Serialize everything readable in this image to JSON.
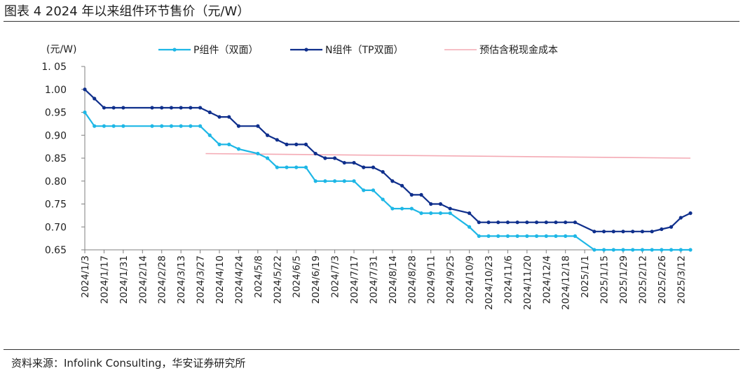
{
  "figure": {
    "title": "图表 4 2024 年以来组件环节售价（元/W）",
    "source": "资料来源：Infolink Consulting，华安证券研究所"
  },
  "chart_data": {
    "type": "line",
    "ylabel": "(元/W)",
    "ylim": [
      0.65,
      1.05
    ],
    "yticks": [
      "1. 05",
      "1.00",
      "0.95",
      "0.90",
      "0.85",
      "0.80",
      "0.75",
      "0.70",
      "0.65"
    ],
    "xlabels": [
      "2024/1/3",
      "2024/1/17",
      "2024/1/31",
      "2024/2/14",
      "2024/2/28",
      "2024/3/13",
      "2024/3/27",
      "2024/4/10",
      "2024/4/24",
      "2024/5/8",
      "2024/5/22",
      "2024/6/5",
      "2024/6/19",
      "2024/7/3",
      "2024/7/17",
      "2024/7/31",
      "2024/8/14",
      "2024/8/28",
      "2024/9/11",
      "2024/9/25",
      "2024/10/9",
      "2024/10/23",
      "2024/11/6",
      "2024/11/20",
      "2024/12/4",
      "2024/12/18",
      "2025/1/1",
      "2025/1/15",
      "2025/1/29",
      "2025/2/12",
      "2025/2/26",
      "2025/3/12"
    ],
    "grid": false,
    "legend_position": "top",
    "series": [
      {
        "name": "P组件（双面）",
        "color": "#1eb7e6",
        "marker": "dot",
        "x": [
          "2024/1/3",
          "2024/1/10",
          "2024/1/17",
          "2024/1/24",
          "2024/1/31",
          "2024/2/21",
          "2024/2/28",
          "2024/3/6",
          "2024/3/13",
          "2024/3/20",
          "2024/3/27",
          "2024/4/3",
          "2024/4/10",
          "2024/4/17",
          "2024/4/24",
          "2024/5/8",
          "2024/5/15",
          "2024/5/22",
          "2024/5/29",
          "2024/6/5",
          "2024/6/12",
          "2024/6/19",
          "2024/6/26",
          "2024/7/3",
          "2024/7/10",
          "2024/7/17",
          "2024/7/24",
          "2024/7/31",
          "2024/8/7",
          "2024/8/14",
          "2024/8/21",
          "2024/8/28",
          "2024/9/4",
          "2024/9/11",
          "2024/9/18",
          "2024/9/25",
          "2024/10/9",
          "2024/10/16",
          "2024/10/23",
          "2024/10/30",
          "2024/11/6",
          "2024/11/13",
          "2024/11/20",
          "2024/11/27",
          "2024/12/4",
          "2024/12/11",
          "2024/12/18",
          "2024/12/25",
          "2025/1/8",
          "2025/1/15",
          "2025/1/22",
          "2025/1/29",
          "2025/2/5",
          "2025/2/12",
          "2025/2/19",
          "2025/2/26",
          "2025/3/5",
          "2025/3/12",
          "2025/3/19"
        ],
        "values": [
          0.95,
          0.92,
          0.92,
          0.92,
          0.92,
          0.92,
          0.92,
          0.92,
          0.92,
          0.92,
          0.92,
          0.9,
          0.88,
          0.88,
          0.87,
          0.86,
          0.85,
          0.83,
          0.83,
          0.83,
          0.83,
          0.8,
          0.8,
          0.8,
          0.8,
          0.8,
          0.78,
          0.78,
          0.76,
          0.74,
          0.74,
          0.74,
          0.73,
          0.73,
          0.73,
          0.73,
          0.7,
          0.68,
          0.68,
          0.68,
          0.68,
          0.68,
          0.68,
          0.68,
          0.68,
          0.68,
          0.68,
          0.68,
          0.65,
          0.65,
          0.65,
          0.65,
          0.65,
          0.65,
          0.65,
          0.65,
          0.65,
          0.65,
          0.65
        ]
      },
      {
        "name": "N组件（TP双面）",
        "color": "#0f2f8c",
        "marker": "dot",
        "x": [
          "2024/1/3",
          "2024/1/10",
          "2024/1/17",
          "2024/1/24",
          "2024/1/31",
          "2024/2/21",
          "2024/2/28",
          "2024/3/6",
          "2024/3/13",
          "2024/3/20",
          "2024/3/27",
          "2024/4/3",
          "2024/4/10",
          "2024/4/17",
          "2024/4/24",
          "2024/5/8",
          "2024/5/15",
          "2024/5/22",
          "2024/5/29",
          "2024/6/5",
          "2024/6/12",
          "2024/6/19",
          "2024/6/26",
          "2024/7/3",
          "2024/7/10",
          "2024/7/17",
          "2024/7/24",
          "2024/7/31",
          "2024/8/7",
          "2024/8/14",
          "2024/8/21",
          "2024/8/28",
          "2024/9/4",
          "2024/9/11",
          "2024/9/18",
          "2024/9/25",
          "2024/10/9",
          "2024/10/16",
          "2024/10/23",
          "2024/10/30",
          "2024/11/6",
          "2024/11/13",
          "2024/11/20",
          "2024/11/27",
          "2024/12/4",
          "2024/12/11",
          "2024/12/18",
          "2024/12/25",
          "2025/1/8",
          "2025/1/15",
          "2025/1/22",
          "2025/1/29",
          "2025/2/5",
          "2025/2/12",
          "2025/2/19",
          "2025/2/26",
          "2025/3/5",
          "2025/3/12",
          "2025/3/19"
        ],
        "values": [
          1.0,
          0.98,
          0.96,
          0.96,
          0.96,
          0.96,
          0.96,
          0.96,
          0.96,
          0.96,
          0.96,
          0.95,
          0.94,
          0.94,
          0.92,
          0.92,
          0.9,
          0.89,
          0.88,
          0.88,
          0.88,
          0.86,
          0.85,
          0.85,
          0.84,
          0.84,
          0.83,
          0.83,
          0.82,
          0.8,
          0.79,
          0.77,
          0.77,
          0.75,
          0.75,
          0.74,
          0.73,
          0.71,
          0.71,
          0.71,
          0.71,
          0.71,
          0.71,
          0.71,
          0.71,
          0.71,
          0.71,
          0.71,
          0.69,
          0.69,
          0.69,
          0.69,
          0.69,
          0.69,
          0.69,
          0.695,
          0.7,
          0.72,
          0.73
        ]
      },
      {
        "name": "预估含税现金成本",
        "color": "#f4aab4",
        "marker": "none",
        "x": [
          "2024/3/31",
          "2025/3/19"
        ],
        "values": [
          0.86,
          0.85
        ]
      }
    ]
  }
}
